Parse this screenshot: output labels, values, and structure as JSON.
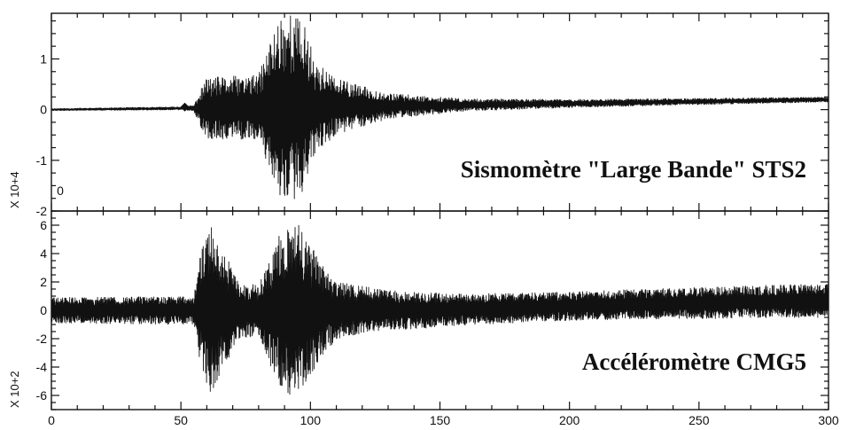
{
  "chart_data": [
    {
      "type": "line",
      "title": "Sismomètre \"Large Bande\" STS2",
      "y_exponent_label": "X 10+4",
      "corner_label": "0",
      "xlim": [
        0,
        300
      ],
      "ylim": [
        -2,
        1.9
      ],
      "y_ticks": [
        1,
        0,
        -1,
        -2
      ],
      "y_tick_labels": [
        "1",
        "0",
        "-1",
        "-2"
      ],
      "series": [
        {
          "baseline": 0,
          "envelope": {
            "t": [
              0,
              50,
              55,
              57,
              60,
              80,
              88,
              92,
              95,
              98,
              102,
              110,
              130,
              160,
              200,
              250,
              300
            ],
            "amplitude": [
              0.02,
              0.03,
              0.06,
              0.3,
              0.6,
              0.65,
              1.85,
              1.9,
              1.8,
              1.6,
              0.9,
              0.55,
              0.25,
              0.12,
              0.08,
              0.06,
              0.05
            ]
          },
          "drift": {
            "t": [
              0,
              100,
              200,
              300
            ],
            "offset": [
              0,
              0.05,
              0.12,
              0.2
            ]
          },
          "marker": {
            "t": 51.5,
            "value": 0.05
          }
        }
      ]
    },
    {
      "type": "line",
      "title": "Accéléromètre CMG5",
      "y_exponent_label": "X 10+2",
      "xlim": [
        0,
        300
      ],
      "ylim": [
        -7,
        7
      ],
      "y_ticks": [
        6,
        4,
        2,
        0,
        -2,
        -4,
        -6
      ],
      "y_tick_labels": [
        "6",
        "4",
        "2",
        "0",
        "-2",
        "-4",
        "-6"
      ],
      "x_ticks": [
        0,
        50,
        100,
        150,
        200,
        250,
        300
      ],
      "x_tick_labels": [
        "0",
        "50",
        "100",
        "150",
        "200",
        "250",
        "300"
      ],
      "series": [
        {
          "baseline": 0,
          "envelope": {
            "t": [
              0,
              55,
              58,
              62,
              66,
              72,
              80,
              88,
              92,
              96,
              102,
              110,
              130,
              160,
              200,
              250,
              300
            ],
            "amplitude": [
              0.9,
              1.0,
              4.5,
              6.0,
              4.5,
              2.0,
              1.8,
              5.5,
              6.3,
              6.0,
              4.0,
              2.0,
              1.4,
              1.1,
              1.0,
              1.1,
              1.2
            ]
          },
          "drift": {
            "t": [
              0,
              150,
              220,
              300
            ],
            "offset": [
              0,
              0,
              0.4,
              0.7
            ]
          }
        }
      ]
    }
  ]
}
